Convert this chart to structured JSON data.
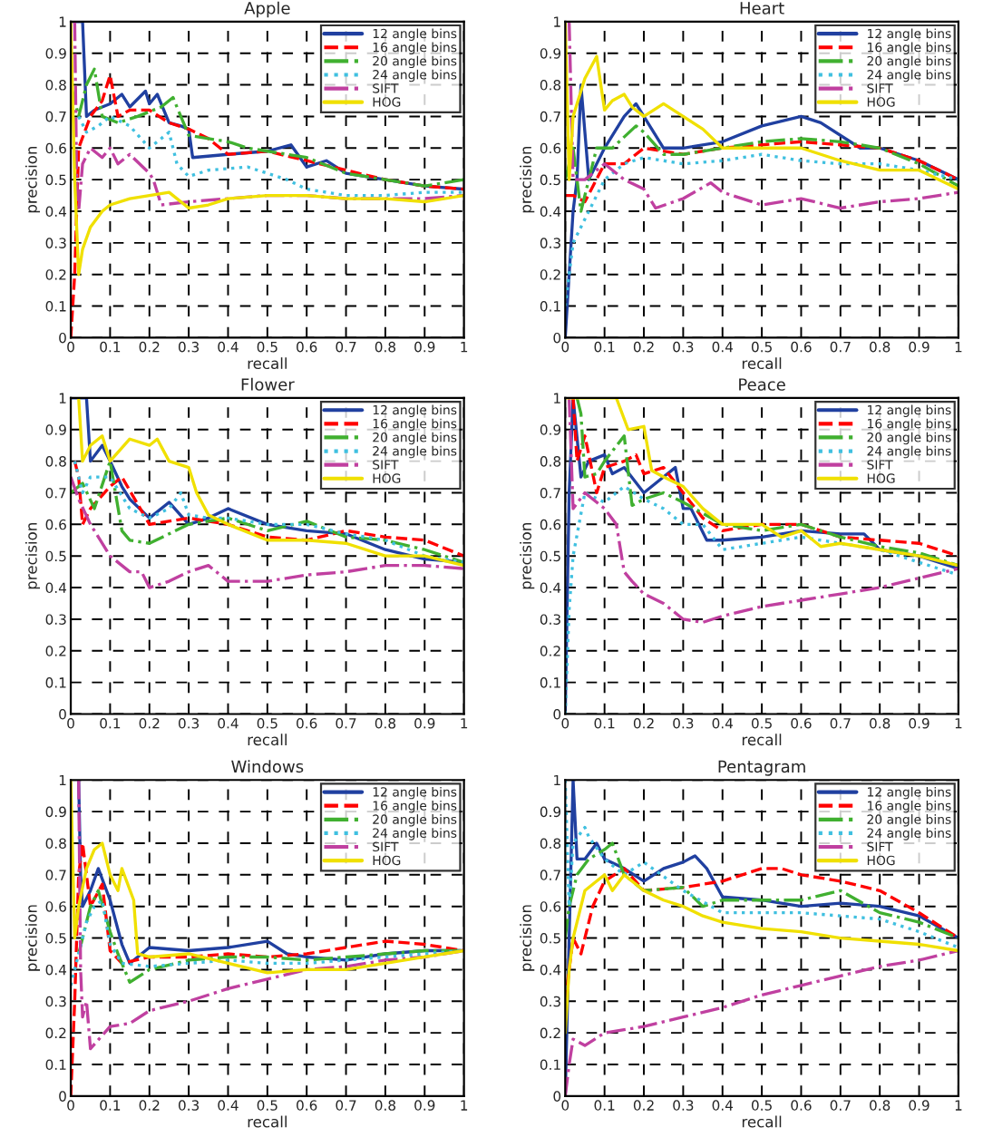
{
  "chart_data": [
    {
      "type": "line",
      "title": "Apple",
      "xlabel": "recall",
      "ylabel": "precision",
      "xlim": [
        0,
        1
      ],
      "ylim": [
        0,
        1
      ],
      "xticks": [
        0,
        0.1,
        0.2,
        0.3,
        0.4,
        0.5,
        0.6,
        0.7,
        0.8,
        0.9,
        1
      ],
      "yticks": [
        0,
        0.1,
        0.2,
        0.3,
        0.4,
        0.5,
        0.6,
        0.7,
        0.8,
        0.9,
        1
      ],
      "grid": true,
      "legend": "top right",
      "series": [
        {
          "name": "12 angle bins",
          "color": "#2040a0",
          "line_style": "solid",
          "x": [
            0,
            0.02,
            0.03,
            0.04,
            0.06,
            0.1,
            0.13,
            0.15,
            0.19,
            0.2,
            0.22,
            0.25,
            0.28,
            0.3,
            0.31,
            0.4,
            0.5,
            0.56,
            0.6,
            0.65,
            0.7,
            0.8,
            0.9,
            1
          ],
          "values": [
            1,
            1,
            1,
            0.7,
            0.72,
            0.74,
            0.77,
            0.73,
            0.78,
            0.74,
            0.77,
            0.68,
            0.67,
            0.66,
            0.57,
            0.58,
            0.59,
            0.61,
            0.54,
            0.56,
            0.52,
            0.5,
            0.48,
            0.47
          ]
        },
        {
          "name": "16 angle bins",
          "color": "#ff0000",
          "line_style": "dashed",
          "x": [
            0,
            0.01,
            0.02,
            0.05,
            0.08,
            0.1,
            0.12,
            0.15,
            0.2,
            0.25,
            0.3,
            0.35,
            0.4,
            0.5,
            0.6,
            0.7,
            0.8,
            0.9,
            1
          ],
          "values": [
            0,
            0.2,
            0.6,
            0.7,
            0.75,
            0.83,
            0.7,
            0.72,
            0.72,
            0.68,
            0.66,
            0.63,
            0.58,
            0.59,
            0.56,
            0.53,
            0.5,
            0.48,
            0.47
          ]
        },
        {
          "name": "20 angle bins",
          "color": "#40b030",
          "line_style": "dashdot",
          "x": [
            0,
            0.02,
            0.04,
            0.06,
            0.08,
            0.12,
            0.17,
            0.23,
            0.26,
            0.3,
            0.4,
            0.45,
            0.55,
            0.6,
            0.7,
            0.8,
            0.9,
            1
          ],
          "values": [
            0.8,
            0.7,
            0.8,
            0.85,
            0.7,
            0.68,
            0.7,
            0.73,
            0.76,
            0.64,
            0.62,
            0.6,
            0.58,
            0.57,
            0.52,
            0.5,
            0.48,
            0.5
          ]
        },
        {
          "name": "24 angle bins",
          "color": "#40c0e0",
          "line_style": "dotted",
          "x": [
            0.02,
            0.04,
            0.07,
            0.1,
            0.15,
            0.2,
            0.25,
            0.27,
            0.3,
            0.35,
            0.45,
            0.5,
            0.55,
            0.6,
            0.7,
            0.8,
            0.9,
            1
          ],
          "values": [
            0.7,
            0.65,
            0.67,
            0.7,
            0.67,
            0.6,
            0.65,
            0.55,
            0.51,
            0.53,
            0.54,
            0.52,
            0.5,
            0.47,
            0.45,
            0.45,
            0.46,
            0.46
          ]
        },
        {
          "name": "SIFT",
          "color": "#c040a0",
          "line_style": "dashdot",
          "x": [
            0.01,
            0.015,
            0.02,
            0.03,
            0.05,
            0.08,
            0.1,
            0.12,
            0.15,
            0.2,
            0.21,
            0.23,
            0.3,
            0.4,
            0.5,
            0.6,
            0.7,
            0.8,
            0.9,
            1
          ],
          "values": [
            1,
            0.5,
            0.4,
            0.55,
            0.6,
            0.57,
            0.6,
            0.55,
            0.58,
            0.52,
            0.5,
            0.42,
            0.43,
            0.44,
            0.45,
            0.45,
            0.44,
            0.44,
            0.44,
            0.45
          ]
        },
        {
          "name": "HOG",
          "color": "#f0e000",
          "line_style": "solid",
          "x": [
            0,
            0.01,
            0.02,
            0.03,
            0.05,
            0.08,
            0.1,
            0.15,
            0.2,
            0.25,
            0.3,
            0.35,
            0.4,
            0.5,
            0.6,
            0.7,
            0.8,
            0.9,
            1
          ],
          "values": [
            1,
            0.5,
            0.2,
            0.28,
            0.35,
            0.4,
            0.42,
            0.44,
            0.45,
            0.46,
            0.41,
            0.42,
            0.44,
            0.45,
            0.45,
            0.44,
            0.44,
            0.43,
            0.45
          ]
        }
      ]
    },
    {
      "type": "line",
      "title": "Heart",
      "xlabel": "recall",
      "ylabel": "precision",
      "xlim": [
        0,
        1
      ],
      "ylim": [
        0,
        1
      ],
      "xticks": [
        0,
        0.1,
        0.2,
        0.3,
        0.4,
        0.5,
        0.6,
        0.7,
        0.8,
        0.9,
        1
      ],
      "yticks": [
        0,
        0.1,
        0.2,
        0.3,
        0.4,
        0.5,
        0.6,
        0.7,
        0.8,
        0.9,
        1
      ],
      "grid": true,
      "legend": "top right",
      "series": [
        {
          "name": "12 angle bins",
          "color": "#2040a0",
          "line_style": "solid",
          "x": [
            0,
            0.02,
            0.03,
            0.04,
            0.06,
            0.1,
            0.15,
            0.18,
            0.2,
            0.25,
            0.3,
            0.4,
            0.5,
            0.6,
            0.65,
            0.75,
            0.8,
            0.9,
            1
          ],
          "values": [
            0,
            0.4,
            0.5,
            0.8,
            0.5,
            0.6,
            0.7,
            0.74,
            0.7,
            0.6,
            0.6,
            0.62,
            0.67,
            0.7,
            0.68,
            0.6,
            0.6,
            0.56,
            0.5
          ]
        },
        {
          "name": "16 angle bins",
          "color": "#ff0000",
          "line_style": "dashed",
          "x": [
            0,
            0.02,
            0.05,
            0.1,
            0.15,
            0.2,
            0.3,
            0.4,
            0.5,
            0.6,
            0.7,
            0.8,
            0.9,
            1
          ],
          "values": [
            0.45,
            0.45,
            0.43,
            0.55,
            0.55,
            0.6,
            0.58,
            0.6,
            0.61,
            0.62,
            0.61,
            0.6,
            0.56,
            0.5
          ]
        },
        {
          "name": "20 angle bins",
          "color": "#40b030",
          "line_style": "dashdot",
          "x": [
            0,
            0.02,
            0.04,
            0.08,
            0.12,
            0.18,
            0.2,
            0.25,
            0.3,
            0.4,
            0.5,
            0.6,
            0.7,
            0.8,
            0.9,
            1
          ],
          "values": [
            0.5,
            0.6,
            0.4,
            0.6,
            0.6,
            0.67,
            0.65,
            0.58,
            0.58,
            0.6,
            0.62,
            0.63,
            0.62,
            0.6,
            0.55,
            0.48
          ]
        },
        {
          "name": "24 angle bins",
          "color": "#40c0e0",
          "line_style": "dotted",
          "x": [
            0,
            0.01,
            0.02,
            0.04,
            0.08,
            0.1,
            0.15,
            0.2,
            0.3,
            0.4,
            0.5,
            0.6,
            0.7,
            0.8,
            0.9,
            1
          ],
          "values": [
            0.1,
            0.2,
            0.3,
            0.35,
            0.45,
            0.5,
            0.55,
            0.57,
            0.55,
            0.56,
            0.58,
            0.56,
            0.55,
            0.55,
            0.53,
            0.5
          ]
        },
        {
          "name": "SIFT",
          "color": "#c040a0",
          "line_style": "dashdot",
          "x": [
            0.01,
            0.02,
            0.05,
            0.1,
            0.15,
            0.2,
            0.23,
            0.3,
            0.37,
            0.4,
            0.5,
            0.6,
            0.7,
            0.8,
            0.9,
            1
          ],
          "values": [
            1,
            0.5,
            0.5,
            0.55,
            0.5,
            0.47,
            0.41,
            0.44,
            0.49,
            0.46,
            0.42,
            0.44,
            0.41,
            0.43,
            0.44,
            0.46
          ]
        },
        {
          "name": "HOG",
          "color": "#f0e000",
          "line_style": "solid",
          "x": [
            0,
            0.01,
            0.02,
            0.05,
            0.08,
            0.1,
            0.12,
            0.15,
            0.17,
            0.2,
            0.25,
            0.3,
            0.35,
            0.4,
            0.5,
            0.6,
            0.7,
            0.8,
            0.9,
            1
          ],
          "values": [
            1,
            0.5,
            0.7,
            0.82,
            0.89,
            0.72,
            0.75,
            0.77,
            0.73,
            0.7,
            0.74,
            0.7,
            0.66,
            0.6,
            0.6,
            0.6,
            0.56,
            0.53,
            0.53,
            0.47
          ]
        }
      ]
    },
    {
      "type": "line",
      "title": "Flower",
      "xlabel": "recall",
      "ylabel": "precision",
      "xlim": [
        0,
        1
      ],
      "ylim": [
        0,
        1
      ],
      "xticks": [
        0,
        0.1,
        0.2,
        0.3,
        0.4,
        0.5,
        0.6,
        0.7,
        0.8,
        0.9,
        1
      ],
      "yticks": [
        0,
        0.1,
        0.2,
        0.3,
        0.4,
        0.5,
        0.6,
        0.7,
        0.8,
        0.9,
        1
      ],
      "grid": true,
      "legend": "top right",
      "series": [
        {
          "name": "12 angle bins",
          "color": "#2040a0",
          "line_style": "solid",
          "x": [
            0,
            0.04,
            0.05,
            0.08,
            0.1,
            0.13,
            0.15,
            0.2,
            0.25,
            0.3,
            0.35,
            0.4,
            0.5,
            0.6,
            0.7,
            0.8,
            0.9,
            1
          ],
          "values": [
            1,
            1,
            0.8,
            0.85,
            0.8,
            0.72,
            0.68,
            0.62,
            0.67,
            0.6,
            0.62,
            0.65,
            0.6,
            0.58,
            0.57,
            0.52,
            0.49,
            0.48
          ]
        },
        {
          "name": "16 angle bins",
          "color": "#ff0000",
          "line_style": "dashed",
          "x": [
            0.01,
            0.02,
            0.03,
            0.05,
            0.1,
            0.13,
            0.2,
            0.3,
            0.4,
            0.5,
            0.6,
            0.7,
            0.8,
            0.9,
            1
          ],
          "values": [
            0.8,
            0.75,
            0.6,
            0.65,
            0.72,
            0.75,
            0.6,
            0.62,
            0.6,
            0.56,
            0.55,
            0.58,
            0.56,
            0.55,
            0.5
          ]
        },
        {
          "name": "20 angle bins",
          "color": "#40b030",
          "line_style": "dashdot",
          "x": [
            0,
            0.03,
            0.06,
            0.1,
            0.13,
            0.15,
            0.2,
            0.25,
            0.3,
            0.4,
            0.5,
            0.6,
            0.7,
            0.8,
            0.9,
            1
          ],
          "values": [
            0.7,
            0.73,
            0.65,
            0.8,
            0.58,
            0.55,
            0.54,
            0.57,
            0.6,
            0.62,
            0.58,
            0.61,
            0.56,
            0.55,
            0.52,
            0.48
          ]
        },
        {
          "name": "24 angle bins",
          "color": "#40c0e0",
          "line_style": "dotted",
          "x": [
            0.01,
            0.03,
            0.05,
            0.1,
            0.15,
            0.2,
            0.25,
            0.28,
            0.3,
            0.35,
            0.4,
            0.5,
            0.6,
            0.7,
            0.8,
            0.9,
            1
          ],
          "values": [
            0.8,
            0.7,
            0.75,
            0.75,
            0.65,
            0.62,
            0.65,
            0.7,
            0.63,
            0.62,
            0.62,
            0.6,
            0.6,
            0.57,
            0.55,
            0.5,
            0.48
          ]
        },
        {
          "name": "SIFT",
          "color": "#c040a0",
          "line_style": "dashdot",
          "x": [
            0,
            0.02,
            0.05,
            0.1,
            0.15,
            0.18,
            0.2,
            0.25,
            0.3,
            0.35,
            0.4,
            0.5,
            0.6,
            0.7,
            0.8,
            0.9,
            1
          ],
          "values": [
            0.75,
            0.68,
            0.6,
            0.5,
            0.45,
            0.45,
            0.4,
            0.42,
            0.45,
            0.47,
            0.42,
            0.42,
            0.44,
            0.45,
            0.47,
            0.47,
            0.46
          ]
        },
        {
          "name": "HOG",
          "color": "#f0e000",
          "line_style": "solid",
          "x": [
            0.02,
            0.03,
            0.05,
            0.08,
            0.1,
            0.15,
            0.2,
            0.22,
            0.25,
            0.3,
            0.32,
            0.35,
            0.4,
            0.5,
            0.6,
            0.7,
            0.8,
            0.9,
            1
          ],
          "values": [
            1,
            0.8,
            0.85,
            0.88,
            0.8,
            0.87,
            0.85,
            0.87,
            0.8,
            0.78,
            0.7,
            0.63,
            0.6,
            0.55,
            0.55,
            0.54,
            0.5,
            0.5,
            0.47
          ]
        }
      ]
    },
    {
      "type": "line",
      "title": "Peace",
      "xlabel": "recall",
      "ylabel": "precision",
      "xlim": [
        0,
        1
      ],
      "ylim": [
        0,
        1
      ],
      "xticks": [
        0,
        0.1,
        0.2,
        0.3,
        0.4,
        0.5,
        0.6,
        0.7,
        0.8,
        0.9,
        1
      ],
      "yticks": [
        0,
        0.1,
        0.2,
        0.3,
        0.4,
        0.5,
        0.6,
        0.7,
        0.8,
        0.9,
        1
      ],
      "grid": true,
      "legend": "top right",
      "series": [
        {
          "name": "12 angle bins",
          "color": "#2040a0",
          "line_style": "solid",
          "x": [
            0,
            0.01,
            0.02,
            0.04,
            0.06,
            0.1,
            0.12,
            0.15,
            0.2,
            0.25,
            0.28,
            0.3,
            0.32,
            0.36,
            0.4,
            0.5,
            0.6,
            0.7,
            0.76,
            0.8,
            0.9,
            1
          ],
          "values": [
            0,
            0.7,
            1,
            0.75,
            0.8,
            0.82,
            0.76,
            0.78,
            0.7,
            0.75,
            0.78,
            0.65,
            0.65,
            0.55,
            0.55,
            0.56,
            0.58,
            0.57,
            0.57,
            0.52,
            0.5,
            0.46
          ]
        },
        {
          "name": "16 angle bins",
          "color": "#ff0000",
          "line_style": "dashed",
          "x": [
            0.02,
            0.03,
            0.05,
            0.08,
            0.1,
            0.15,
            0.18,
            0.2,
            0.25,
            0.3,
            0.35,
            0.4,
            0.5,
            0.6,
            0.7,
            0.8,
            0.9,
            1
          ],
          "values": [
            1,
            0.8,
            0.88,
            0.7,
            0.78,
            0.8,
            0.82,
            0.76,
            0.78,
            0.7,
            0.62,
            0.58,
            0.6,
            0.6,
            0.56,
            0.55,
            0.54,
            0.5
          ]
        },
        {
          "name": "20 angle bins",
          "color": "#40b030",
          "line_style": "dashdot",
          "x": [
            0.03,
            0.04,
            0.05,
            0.08,
            0.1,
            0.15,
            0.17,
            0.2,
            0.25,
            0.3,
            0.4,
            0.5,
            0.6,
            0.7,
            0.8,
            0.9,
            1
          ],
          "values": [
            1,
            0.95,
            0.75,
            0.76,
            0.8,
            0.88,
            0.66,
            0.68,
            0.7,
            0.67,
            0.6,
            0.58,
            0.6,
            0.56,
            0.53,
            0.51,
            0.47
          ]
        },
        {
          "name": "24 angle bins",
          "color": "#40c0e0",
          "line_style": "dotted",
          "x": [
            0,
            0.01,
            0.02,
            0.05,
            0.1,
            0.15,
            0.2,
            0.25,
            0.3,
            0.35,
            0.4,
            0.5,
            0.6,
            0.7,
            0.8,
            0.9,
            1
          ],
          "values": [
            0,
            0.33,
            0.5,
            0.7,
            0.67,
            0.72,
            0.68,
            0.65,
            0.6,
            0.6,
            0.52,
            0.54,
            0.56,
            0.54,
            0.52,
            0.48,
            0.44
          ]
        },
        {
          "name": "SIFT",
          "color": "#c040a0",
          "line_style": "dashdot",
          "x": [
            0.01,
            0.02,
            0.05,
            0.1,
            0.13,
            0.15,
            0.17,
            0.2,
            0.25,
            0.3,
            0.35,
            0.4,
            0.5,
            0.6,
            0.7,
            0.8,
            0.9,
            1
          ],
          "values": [
            1,
            0.65,
            0.7,
            0.65,
            0.6,
            0.45,
            0.42,
            0.38,
            0.35,
            0.3,
            0.29,
            0.31,
            0.34,
            0.36,
            0.38,
            0.4,
            0.43,
            0.46
          ]
        },
        {
          "name": "HOG",
          "color": "#f0e000",
          "line_style": "solid",
          "x": [
            0,
            0.02,
            0.13,
            0.16,
            0.2,
            0.22,
            0.25,
            0.3,
            0.35,
            0.4,
            0.5,
            0.55,
            0.6,
            0.65,
            0.7,
            0.8,
            0.9,
            1
          ],
          "values": [
            1,
            1,
            1,
            0.9,
            0.91,
            0.77,
            0.75,
            0.72,
            0.65,
            0.6,
            0.6,
            0.56,
            0.58,
            0.53,
            0.54,
            0.52,
            0.5,
            0.47
          ]
        }
      ]
    },
    {
      "type": "line",
      "title": "Windows",
      "xlabel": "recall",
      "ylabel": "precision",
      "xlim": [
        0,
        1
      ],
      "ylim": [
        0,
        1
      ],
      "xticks": [
        0,
        0.1,
        0.2,
        0.3,
        0.4,
        0.5,
        0.6,
        0.7,
        0.8,
        0.9,
        1
      ],
      "yticks": [
        0,
        0.1,
        0.2,
        0.3,
        0.4,
        0.5,
        0.6,
        0.7,
        0.8,
        0.9,
        1
      ],
      "grid": true,
      "legend": "top right",
      "series": [
        {
          "name": "12 angle bins",
          "color": "#2040a0",
          "line_style": "solid",
          "x": [
            0.02,
            0.025,
            0.03,
            0.05,
            0.07,
            0.1,
            0.13,
            0.15,
            0.2,
            0.3,
            0.4,
            0.5,
            0.55,
            0.6,
            0.7,
            0.8,
            0.9,
            1
          ],
          "values": [
            1,
            0.7,
            0.6,
            0.65,
            0.72,
            0.62,
            0.48,
            0.42,
            0.47,
            0.46,
            0.47,
            0.49,
            0.45,
            0.44,
            0.43,
            0.45,
            0.46,
            0.46
          ]
        },
        {
          "name": "16 angle bins",
          "color": "#ff0000",
          "line_style": "dashed",
          "x": [
            0,
            0.01,
            0.02,
            0.03,
            0.05,
            0.08,
            0.1,
            0.13,
            0.2,
            0.3,
            0.4,
            0.5,
            0.6,
            0.7,
            0.8,
            0.9,
            1
          ],
          "values": [
            0,
            0.3,
            0.7,
            0.8,
            0.6,
            0.67,
            0.46,
            0.42,
            0.44,
            0.44,
            0.45,
            0.44,
            0.45,
            0.47,
            0.49,
            0.48,
            0.46
          ]
        },
        {
          "name": "20 angle bins",
          "color": "#40b030",
          "line_style": "dashdot",
          "x": [
            0.02,
            0.05,
            0.07,
            0.1,
            0.12,
            0.15,
            0.2,
            0.3,
            0.4,
            0.5,
            0.6,
            0.7,
            0.8,
            0.9,
            1
          ],
          "values": [
            0.45,
            0.6,
            0.65,
            0.52,
            0.45,
            0.36,
            0.4,
            0.43,
            0.44,
            0.44,
            0.43,
            0.44,
            0.45,
            0.46,
            0.46
          ]
        },
        {
          "name": "24 angle bins",
          "color": "#40c0e0",
          "line_style": "dotted",
          "x": [
            0,
            0.02,
            0.04,
            0.06,
            0.08,
            0.1,
            0.13,
            0.2,
            0.3,
            0.4,
            0.5,
            0.6,
            0.7,
            0.8,
            0.9,
            1
          ],
          "values": [
            0.35,
            0.45,
            0.55,
            0.6,
            0.62,
            0.48,
            0.42,
            0.41,
            0.42,
            0.43,
            0.42,
            0.42,
            0.43,
            0.44,
            0.45,
            0.46
          ]
        },
        {
          "name": "SIFT",
          "color": "#c040a0",
          "line_style": "dashdot",
          "x": [
            0.02,
            0.025,
            0.03,
            0.04,
            0.05,
            0.1,
            0.15,
            0.2,
            0.3,
            0.4,
            0.5,
            0.6,
            0.7,
            0.8,
            0.9,
            1
          ],
          "values": [
            1,
            0.4,
            0.25,
            0.3,
            0.15,
            0.22,
            0.23,
            0.27,
            0.3,
            0.34,
            0.37,
            0.4,
            0.41,
            0.43,
            0.44,
            0.46
          ]
        },
        {
          "name": "HOG",
          "color": "#f0e000",
          "line_style": "solid",
          "x": [
            0,
            0.01,
            0.02,
            0.04,
            0.06,
            0.08,
            0.1,
            0.12,
            0.13,
            0.16,
            0.17,
            0.2,
            0.3,
            0.4,
            0.5,
            0.6,
            0.7,
            0.8,
            0.9,
            1
          ],
          "values": [
            1,
            0.5,
            0.6,
            0.72,
            0.78,
            0.8,
            0.7,
            0.65,
            0.72,
            0.62,
            0.45,
            0.44,
            0.45,
            0.42,
            0.39,
            0.4,
            0.4,
            0.42,
            0.44,
            0.46
          ]
        }
      ]
    },
    {
      "type": "line",
      "title": "Pentagram",
      "xlabel": "recall",
      "ylabel": "precision",
      "xlim": [
        0,
        1
      ],
      "ylim": [
        0,
        1
      ],
      "xticks": [
        0,
        0.1,
        0.2,
        0.3,
        0.4,
        0.5,
        0.6,
        0.7,
        0.8,
        0.9,
        1
      ],
      "yticks": [
        0,
        0.1,
        0.2,
        0.3,
        0.4,
        0.5,
        0.6,
        0.7,
        0.8,
        0.9,
        1
      ],
      "grid": true,
      "legend": "top right",
      "series": [
        {
          "name": "12 angle bins",
          "color": "#2040a0",
          "line_style": "solid",
          "x": [
            0,
            0.02,
            0.03,
            0.05,
            0.08,
            0.1,
            0.15,
            0.2,
            0.25,
            0.3,
            0.33,
            0.36,
            0.4,
            0.5,
            0.6,
            0.7,
            0.8,
            0.9,
            1
          ],
          "values": [
            0,
            1,
            0.75,
            0.75,
            0.8,
            0.75,
            0.72,
            0.68,
            0.72,
            0.74,
            0.76,
            0.72,
            0.63,
            0.62,
            0.6,
            0.61,
            0.6,
            0.57,
            0.5
          ]
        },
        {
          "name": "16 angle bins",
          "color": "#ff0000",
          "line_style": "dashed",
          "x": [
            0,
            0.02,
            0.04,
            0.07,
            0.1,
            0.15,
            0.2,
            0.3,
            0.4,
            0.5,
            0.55,
            0.6,
            0.7,
            0.8,
            0.9,
            1
          ],
          "values": [
            0.3,
            0.5,
            0.45,
            0.6,
            0.68,
            0.72,
            0.65,
            0.66,
            0.68,
            0.72,
            0.72,
            0.7,
            0.68,
            0.65,
            0.58,
            0.5
          ]
        },
        {
          "name": "20 angle bins",
          "color": "#40b030",
          "line_style": "dashdot",
          "x": [
            0,
            0.01,
            0.03,
            0.06,
            0.1,
            0.12,
            0.15,
            0.2,
            0.3,
            0.35,
            0.4,
            0.5,
            0.6,
            0.7,
            0.8,
            0.9,
            1
          ],
          "values": [
            0.5,
            0.6,
            0.7,
            0.75,
            0.78,
            0.8,
            0.7,
            0.65,
            0.66,
            0.6,
            0.62,
            0.62,
            0.62,
            0.65,
            0.58,
            0.55,
            0.5
          ]
        },
        {
          "name": "24 angle bins",
          "color": "#40c0e0",
          "line_style": "dotted",
          "x": [
            0,
            0.01,
            0.02,
            0.05,
            0.06,
            0.1,
            0.15,
            0.2,
            0.3,
            0.4,
            0.5,
            0.6,
            0.7,
            0.8,
            0.9,
            1
          ],
          "values": [
            1,
            0.6,
            0.8,
            0.85,
            0.82,
            0.75,
            0.7,
            0.74,
            0.65,
            0.58,
            0.58,
            0.58,
            0.57,
            0.56,
            0.52,
            0.47
          ]
        },
        {
          "name": "SIFT",
          "color": "#c040a0",
          "line_style": "dashdot",
          "x": [
            0,
            0.01,
            0.02,
            0.05,
            0.1,
            0.15,
            0.2,
            0.3,
            0.4,
            0.5,
            0.6,
            0.7,
            0.8,
            0.9,
            1
          ],
          "values": [
            0,
            0.1,
            0.18,
            0.16,
            0.2,
            0.21,
            0.22,
            0.25,
            0.28,
            0.32,
            0.35,
            0.38,
            0.41,
            0.43,
            0.46
          ]
        },
        {
          "name": "HOG",
          "color": "#f0e000",
          "line_style": "solid",
          "x": [
            0,
            0.01,
            0.02,
            0.05,
            0.08,
            0.1,
            0.12,
            0.15,
            0.2,
            0.25,
            0.3,
            0.35,
            0.4,
            0.5,
            0.6,
            0.7,
            0.8,
            0.9,
            1
          ],
          "values": [
            0.2,
            0.4,
            0.5,
            0.65,
            0.68,
            0.7,
            0.65,
            0.7,
            0.65,
            0.62,
            0.6,
            0.57,
            0.55,
            0.53,
            0.52,
            0.5,
            0.49,
            0.48,
            0.46
          ]
        }
      ]
    }
  ]
}
